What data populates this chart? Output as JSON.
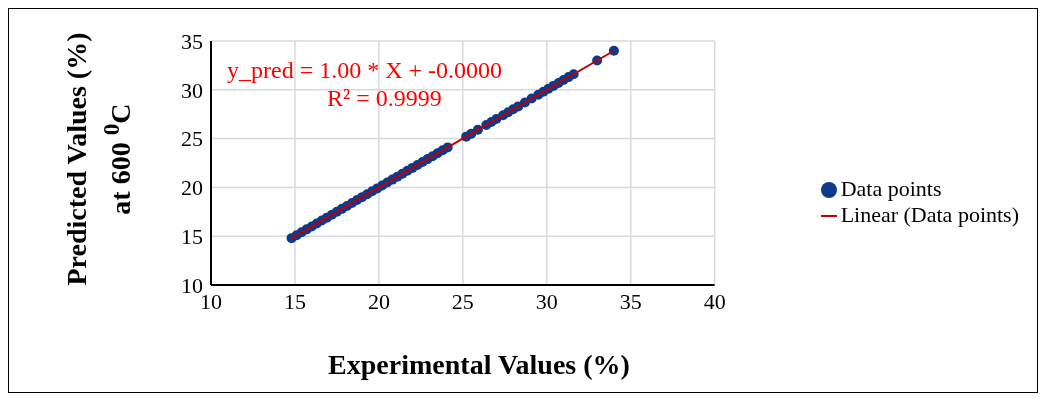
{
  "chart_data": {
    "type": "scatter",
    "xlabel": "Experimental Values (%)",
    "ylabel": "Predicted Values (%)\nat 600 $^{0}$C",
    "x": [
      14.8,
      15.1,
      15.4,
      15.7,
      16.0,
      16.3,
      16.6,
      16.9,
      17.2,
      17.5,
      17.8,
      18.1,
      18.4,
      18.7,
      19.0,
      19.3,
      19.6,
      19.9,
      20.2,
      20.5,
      20.8,
      21.1,
      21.4,
      21.7,
      22.0,
      22.3,
      22.6,
      22.9,
      23.2,
      23.5,
      23.8,
      24.1,
      25.2,
      25.5,
      25.9,
      26.4,
      26.7,
      27.0,
      27.4,
      27.7,
      28.0,
      28.3,
      28.7,
      29.1,
      29.5,
      29.8,
      30.1,
      30.4,
      30.7,
      31.0,
      31.3,
      31.6,
      33.0,
      34.0
    ],
    "series": [
      {
        "name": "Data points",
        "color": "#0e3a8c",
        "values": [
          14.8,
          15.1,
          15.4,
          15.7,
          16.0,
          16.3,
          16.6,
          16.9,
          17.2,
          17.5,
          17.8,
          18.1,
          18.4,
          18.7,
          19.0,
          19.3,
          19.6,
          19.9,
          20.2,
          20.5,
          20.8,
          21.1,
          21.4,
          21.7,
          22.0,
          22.3,
          22.6,
          22.9,
          23.2,
          23.5,
          23.8,
          24.1,
          25.2,
          25.5,
          25.9,
          26.4,
          26.7,
          27.0,
          27.4,
          27.7,
          28.0,
          28.3,
          28.7,
          29.1,
          29.5,
          29.8,
          30.1,
          30.4,
          30.7,
          31.0,
          31.3,
          31.6,
          33.0,
          34.0
        ]
      },
      {
        "name": "Linear (Data points)",
        "type": "line",
        "marker": "none",
        "color": "#c00000",
        "x": [
          14.8,
          34.0
        ],
        "values": [
          14.8,
          34.0
        ]
      }
    ],
    "xlim": [
      10,
      40
    ],
    "xticks": [
      10,
      15,
      20,
      25,
      30,
      35,
      40
    ],
    "ylim": [
      10,
      35
    ],
    "yticks": [
      10,
      15,
      20,
      25,
      30,
      35
    ],
    "grid": true,
    "legend": "right",
    "marker": "circle",
    "annotations": [
      {
        "text": "y_pred = 1.00 * X + -0.0000"
      },
      {
        "text": "R² = 0.9999"
      }
    ]
  }
}
